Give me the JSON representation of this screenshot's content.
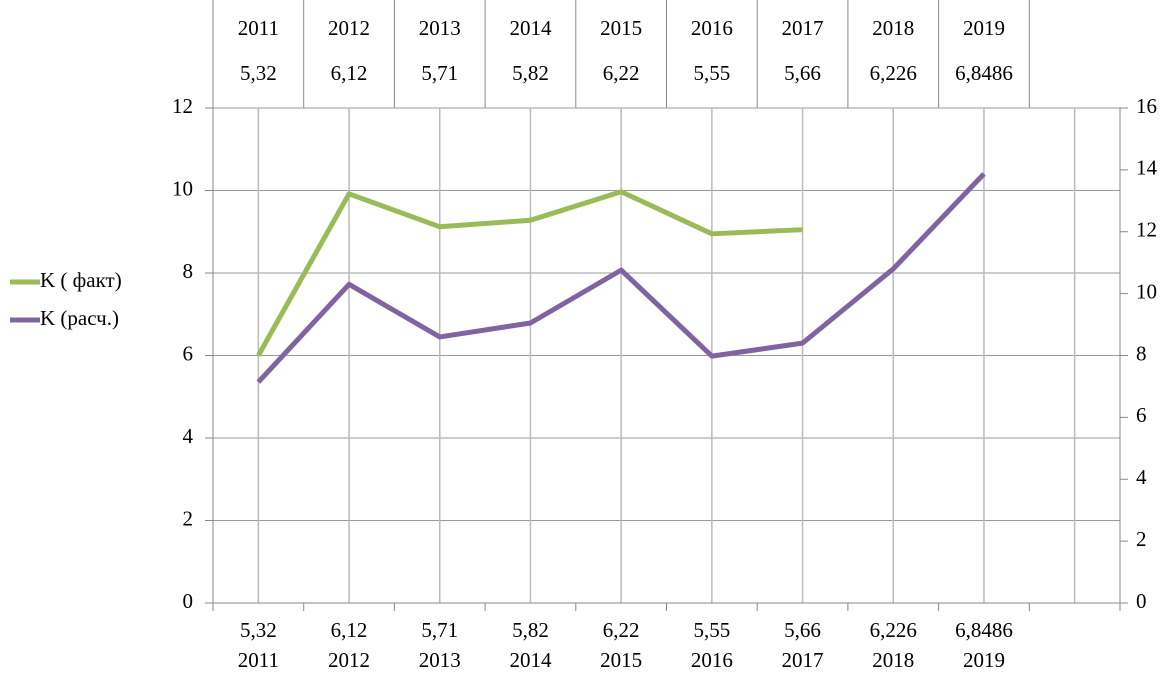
{
  "table": {
    "rows": [
      [
        "2011",
        "2012",
        "2013",
        "2014",
        "2015",
        "2016",
        "2017",
        "2018",
        "2019"
      ],
      [
        "5,32",
        "6,12",
        "5,71",
        "5,82",
        "6,22",
        "5,55",
        "5,66",
        "6,226",
        "6,8486"
      ]
    ]
  },
  "chart_data": {
    "type": "line",
    "categories": [
      [
        "5,32",
        "2011"
      ],
      [
        "6,12",
        "2012"
      ],
      [
        "5,71",
        "2013"
      ],
      [
        "5,82",
        "2014"
      ],
      [
        "6,22",
        "2015"
      ],
      [
        "5,55",
        "2016"
      ],
      [
        "5,66",
        "2017"
      ],
      [
        "6,226",
        "2018"
      ],
      [
        "6,8486",
        "2019"
      ],
      null
    ],
    "series": [
      {
        "name": "K ( факт)",
        "color": "#9bbb59",
        "values": [
          6.0,
          9.92,
          9.12,
          9.28,
          9.97,
          8.95,
          9.05,
          null,
          null,
          null
        ]
      },
      {
        "name": "K (расч.)",
        "color": "#8064a2",
        "axis": "y2",
        "values": [
          7.14,
          10.3,
          8.6,
          9.05,
          10.76,
          7.98,
          8.4,
          10.8,
          13.87,
          null
        ]
      }
    ],
    "ylim": [
      0,
      12
    ],
    "yticks": [
      0,
      2,
      4,
      6,
      8,
      10,
      12
    ],
    "y2lim": [
      0,
      16
    ],
    "y2ticks": [
      0,
      2,
      4,
      6,
      8,
      10,
      12,
      14,
      16
    ],
    "grid": true,
    "legend": "left"
  }
}
